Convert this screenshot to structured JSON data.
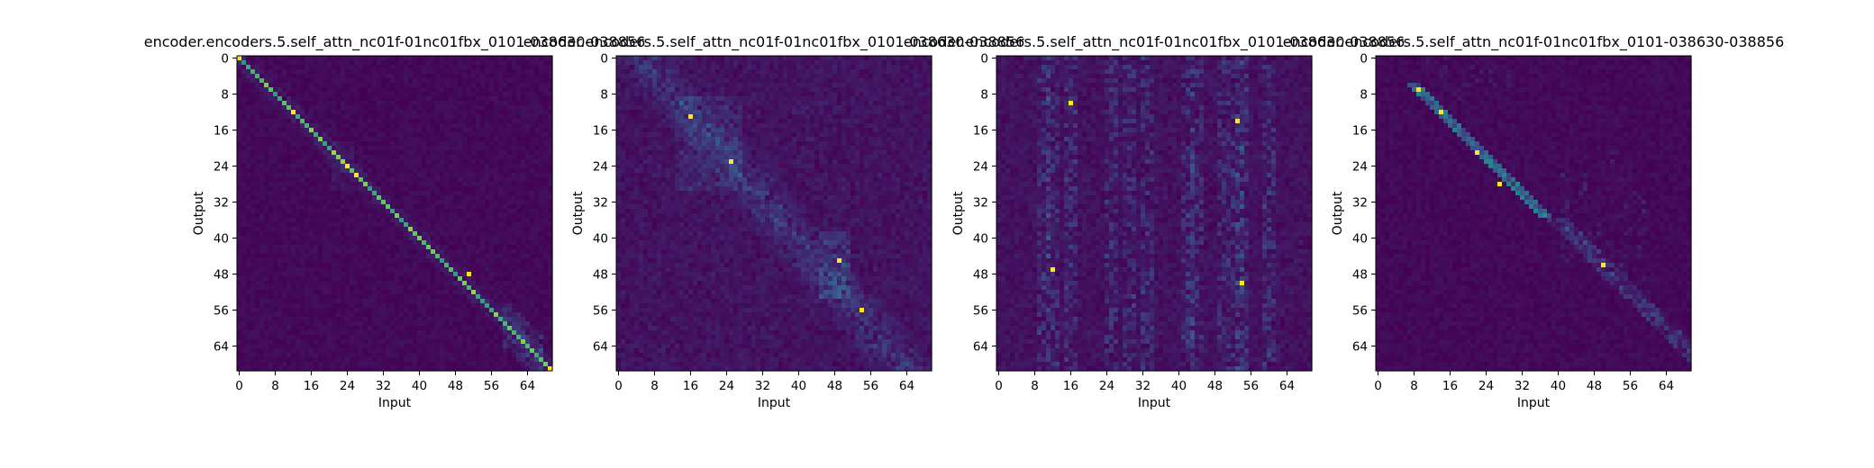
{
  "chart_data": [
    {
      "type": "heatmap",
      "title": "encoder.encoders.5.self_attn_nc01f-01nc01fbx_0101-038630-038856",
      "xlabel": "Input",
      "ylabel": "Output",
      "x_ticks": [
        0,
        8,
        16,
        24,
        32,
        40,
        48,
        56,
        64
      ],
      "y_ticks": [
        0,
        8,
        16,
        24,
        32,
        40,
        48,
        56,
        64
      ],
      "shape": [
        70,
        70
      ],
      "pattern": "diagonal",
      "colormap": "viridis",
      "peaks": [
        [
          0,
          0
        ],
        [
          12,
          12
        ],
        [
          24,
          24
        ],
        [
          26,
          26
        ],
        [
          48,
          51
        ],
        [
          69,
          69
        ]
      ]
    },
    {
      "type": "heatmap",
      "title": "encoder.encoders.5.self_attn_nc01f-01nc01fbx_0101-038630-038856",
      "xlabel": "Input",
      "ylabel": "Output",
      "x_ticks": [
        0,
        8,
        16,
        24,
        32,
        40,
        48,
        56,
        64
      ],
      "y_ticks": [
        0,
        8,
        16,
        24,
        32,
        40,
        48,
        56,
        64
      ],
      "shape": [
        70,
        70
      ],
      "pattern": "diffuse",
      "colormap": "viridis",
      "peaks": [
        [
          13,
          16
        ],
        [
          23,
          25
        ],
        [
          45,
          49
        ],
        [
          56,
          54
        ]
      ]
    },
    {
      "type": "heatmap",
      "title": "encoder.encoders.5.self_attn_nc01f-01nc01fbx_0101-038630-038856",
      "xlabel": "Input",
      "ylabel": "Output",
      "x_ticks": [
        0,
        8,
        16,
        24,
        32,
        40,
        48,
        56,
        64
      ],
      "y_ticks": [
        0,
        8,
        16,
        24,
        32,
        40,
        48,
        56,
        64
      ],
      "shape": [
        70,
        70
      ],
      "pattern": "columns",
      "colormap": "viridis",
      "peaks": [
        [
          47,
          12
        ],
        [
          50,
          54
        ],
        [
          10,
          16
        ],
        [
          14,
          53
        ]
      ]
    },
    {
      "type": "heatmap",
      "title": "encoder.encoders.5.self_attn_nc01f-01nc01fbx_0101-038630-038856",
      "xlabel": "Input",
      "ylabel": "Output",
      "x_ticks": [
        0,
        8,
        16,
        24,
        32,
        40,
        48,
        56,
        64
      ],
      "y_ticks": [
        0,
        8,
        16,
        24,
        32,
        40,
        48,
        56,
        64
      ],
      "shape": [
        70,
        70
      ],
      "pattern": "offset-diagonal",
      "colormap": "viridis",
      "peaks": [
        [
          7,
          9
        ],
        [
          12,
          14
        ],
        [
          21,
          22
        ],
        [
          28,
          27
        ],
        [
          46,
          50
        ]
      ]
    }
  ]
}
